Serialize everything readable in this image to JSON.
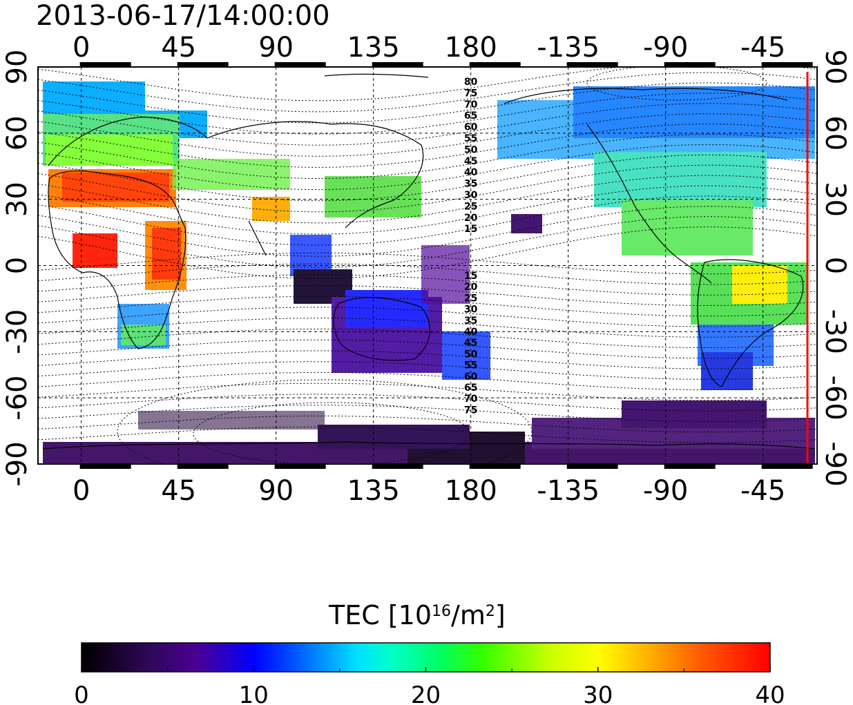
{
  "title": "2013-06-17/14:00:00",
  "top_lon_ticks": [
    "0",
    "45",
    "90",
    "135",
    "180",
    "-135",
    "-90",
    "-45"
  ],
  "bottom_lon_ticks": [
    "0",
    "45",
    "90",
    "135",
    "180",
    "-135",
    "-90",
    "-45"
  ],
  "left_lat_ticks": [
    "90",
    "60",
    "30",
    "0",
    "-30",
    "-60",
    "-90"
  ],
  "right_lat_ticks": [
    "90",
    "60",
    "30",
    "0",
    "-30",
    "-60",
    "-90"
  ],
  "contour_labels_north": [
    "80",
    "75",
    "70",
    "65",
    "60",
    "55",
    "50",
    "45",
    "40",
    "35",
    "30",
    "25",
    "20",
    "15"
  ],
  "contour_labels_south": [
    "15",
    "20",
    "25",
    "30",
    "35",
    "40",
    "45",
    "50",
    "55",
    "60",
    "65",
    "70",
    "75"
  ],
  "colorbar": {
    "title_main": "TEC  [10",
    "title_exp": "16",
    "title_mid": "/m",
    "title_exp2": "2",
    "title_end": "]",
    "ticks": [
      "0",
      "10",
      "20",
      "30",
      "40"
    ],
    "min": 0,
    "max": 40,
    "colors": [
      "#000000",
      "#3a0a6a",
      "#4b0096",
      "#0000ff",
      "#0064ff",
      "#00c8ff",
      "#00ffc8",
      "#00ff64",
      "#64ff00",
      "#c8ff00",
      "#ffff00",
      "#ffb400",
      "#ff6400",
      "#ff0000"
    ]
  },
  "map": {
    "lon_range": [
      -20,
      340
    ],
    "lat_range": [
      -90,
      90
    ],
    "terminator_color": "#ff0000",
    "grid": true
  }
}
